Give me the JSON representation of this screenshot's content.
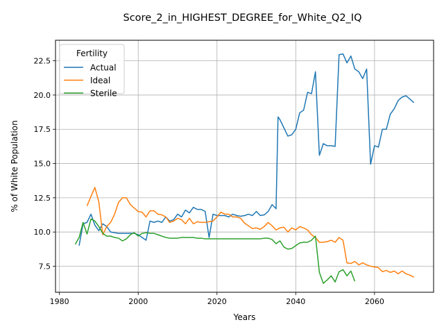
{
  "chart_data": {
    "type": "line",
    "title": "Score_2_in_HIGHEST_DEGREE_for_White_Q2_IQ",
    "xlabel": "Years",
    "ylabel": "% of White Population",
    "xlim": [
      1979,
      2075
    ],
    "ylim": [
      5.6,
      24.0
    ],
    "xticks": [
      1980,
      2000,
      2020,
      2040,
      2060
    ],
    "yticks": [
      7.5,
      10.0,
      12.5,
      15.0,
      17.5,
      20.0,
      22.5
    ],
    "grid": true,
    "legend": {
      "title": "Fertility",
      "placement": "top-left"
    },
    "series": [
      {
        "name": "Actual",
        "color": "#1f77b4",
        "points": [
          [
            1985,
            9.0
          ],
          [
            1986,
            10.6
          ],
          [
            1987,
            10.7
          ],
          [
            1988,
            11.3
          ],
          [
            1989,
            10.5
          ],
          [
            1990,
            10.1
          ],
          [
            1991,
            10.6
          ],
          [
            1992,
            10.4
          ],
          [
            1993,
            10.0
          ],
          [
            1994,
            9.95
          ],
          [
            1995,
            9.9
          ],
          [
            1996,
            9.9
          ],
          [
            1997,
            9.9
          ],
          [
            1998,
            9.9
          ],
          [
            1999,
            9.9
          ],
          [
            2000,
            9.8
          ],
          [
            2001,
            9.6
          ],
          [
            2002,
            9.4
          ],
          [
            2003,
            10.8
          ],
          [
            2004,
            10.7
          ],
          [
            2005,
            10.8
          ],
          [
            2006,
            10.7
          ],
          [
            2007,
            11.1
          ],
          [
            2008,
            10.8
          ],
          [
            2009,
            10.9
          ],
          [
            2010,
            11.3
          ],
          [
            2011,
            11.1
          ],
          [
            2012,
            11.6
          ],
          [
            2013,
            11.4
          ],
          [
            2014,
            11.8
          ],
          [
            2015,
            11.65
          ],
          [
            2016,
            11.65
          ],
          [
            2017,
            11.5
          ],
          [
            2018,
            9.6
          ],
          [
            2019,
            11.3
          ],
          [
            2020,
            11.2
          ],
          [
            2021,
            11.2
          ],
          [
            2022,
            11.2
          ],
          [
            2023,
            11.1
          ],
          [
            2024,
            11.3
          ],
          [
            2025,
            11.2
          ],
          [
            2026,
            11.15
          ],
          [
            2027,
            11.2
          ],
          [
            2028,
            11.3
          ],
          [
            2029,
            11.2
          ],
          [
            2030,
            11.5
          ],
          [
            2031,
            11.2
          ],
          [
            2032,
            11.25
          ],
          [
            2033,
            11.5
          ],
          [
            2034,
            12.0
          ],
          [
            2035,
            11.7
          ],
          [
            2035.5,
            18.4
          ],
          [
            2036,
            18.2
          ],
          [
            2037,
            17.6
          ],
          [
            2038,
            17.0
          ],
          [
            2039,
            17.1
          ],
          [
            2040,
            17.5
          ],
          [
            2041,
            18.7
          ],
          [
            2042,
            18.9
          ],
          [
            2043,
            20.2
          ],
          [
            2044,
            20.1
          ],
          [
            2045,
            21.7
          ],
          [
            2046,
            15.6
          ],
          [
            2047,
            16.45
          ],
          [
            2048,
            16.3
          ],
          [
            2049,
            16.3
          ],
          [
            2050,
            16.25
          ],
          [
            2051,
            22.95
          ],
          [
            2052,
            23.0
          ],
          [
            2053,
            22.35
          ],
          [
            2054,
            22.85
          ],
          [
            2055,
            21.9
          ],
          [
            2056,
            21.7
          ],
          [
            2057,
            21.2
          ],
          [
            2058,
            21.9
          ],
          [
            2059,
            14.95
          ],
          [
            2060,
            16.3
          ],
          [
            2061,
            16.2
          ],
          [
            2062,
            17.5
          ],
          [
            2063,
            17.5
          ],
          [
            2064,
            18.6
          ],
          [
            2065,
            19.0
          ],
          [
            2066,
            19.6
          ],
          [
            2067,
            19.85
          ],
          [
            2068,
            19.95
          ],
          [
            2069,
            19.7
          ],
          [
            2070,
            19.45
          ]
        ]
      },
      {
        "name": "Ideal",
        "color": "#ff7f0e",
        "points": [
          [
            1987,
            11.9
          ],
          [
            1988,
            12.6
          ],
          [
            1989,
            13.25
          ],
          [
            1990,
            12.2
          ],
          [
            1991,
            9.8
          ],
          [
            1992,
            10.4
          ],
          [
            1993,
            10.7
          ],
          [
            1994,
            11.3
          ],
          [
            1995,
            12.15
          ],
          [
            1996,
            12.5
          ],
          [
            1997,
            12.5
          ],
          [
            1998,
            12.0
          ],
          [
            1999,
            11.75
          ],
          [
            2000,
            11.5
          ],
          [
            2001,
            11.45
          ],
          [
            2002,
            11.1
          ],
          [
            2003,
            11.55
          ],
          [
            2004,
            11.55
          ],
          [
            2005,
            11.3
          ],
          [
            2006,
            11.25
          ],
          [
            2007,
            11.1
          ],
          [
            2008,
            10.7
          ],
          [
            2009,
            10.8
          ],
          [
            2010,
            11.0
          ],
          [
            2011,
            10.9
          ],
          [
            2012,
            10.6
          ],
          [
            2013,
            11.0
          ],
          [
            2014,
            10.6
          ],
          [
            2015,
            10.75
          ],
          [
            2016,
            10.7
          ],
          [
            2017,
            10.7
          ],
          [
            2018,
            10.75
          ],
          [
            2019,
            10.8
          ],
          [
            2020,
            11.1
          ],
          [
            2021,
            11.45
          ],
          [
            2022,
            11.3
          ],
          [
            2023,
            11.3
          ],
          [
            2024,
            11.1
          ],
          [
            2025,
            11.1
          ],
          [
            2026,
            11.0
          ],
          [
            2027,
            10.65
          ],
          [
            2028,
            10.45
          ],
          [
            2029,
            10.25
          ],
          [
            2030,
            10.3
          ],
          [
            2031,
            10.2
          ],
          [
            2032,
            10.4
          ],
          [
            2033,
            10.7
          ],
          [
            2034,
            10.45
          ],
          [
            2035,
            10.15
          ],
          [
            2036,
            10.3
          ],
          [
            2037,
            10.35
          ],
          [
            2038,
            10.0
          ],
          [
            2039,
            10.3
          ],
          [
            2040,
            10.15
          ],
          [
            2041,
            10.4
          ],
          [
            2042,
            10.3
          ],
          [
            2043,
            10.15
          ],
          [
            2044,
            9.8
          ],
          [
            2045,
            9.6
          ],
          [
            2046,
            9.25
          ],
          [
            2047,
            9.25
          ],
          [
            2048,
            9.3
          ],
          [
            2049,
            9.4
          ],
          [
            2050,
            9.25
          ],
          [
            2051,
            9.6
          ],
          [
            2052,
            9.4
          ],
          [
            2053,
            7.75
          ],
          [
            2054,
            7.7
          ],
          [
            2055,
            7.85
          ],
          [
            2056,
            7.6
          ],
          [
            2057,
            7.75
          ],
          [
            2058,
            7.6
          ],
          [
            2059,
            7.5
          ],
          [
            2060,
            7.45
          ],
          [
            2061,
            7.4
          ],
          [
            2062,
            7.1
          ],
          [
            2063,
            7.2
          ],
          [
            2064,
            7.05
          ],
          [
            2065,
            7.15
          ],
          [
            2066,
            6.95
          ],
          [
            2067,
            7.15
          ],
          [
            2068,
            6.95
          ],
          [
            2069,
            6.85
          ],
          [
            2070,
            6.7
          ]
        ]
      },
      {
        "name": "Sterile",
        "color": "#2ca02c",
        "points": [
          [
            1984,
            9.1
          ],
          [
            1985,
            9.6
          ],
          [
            1986,
            10.7
          ],
          [
            1987,
            9.85
          ],
          [
            1988,
            10.95
          ],
          [
            1989,
            10.8
          ],
          [
            1990,
            10.4
          ],
          [
            1991,
            9.9
          ],
          [
            1992,
            9.7
          ],
          [
            1993,
            9.7
          ],
          [
            1994,
            9.6
          ],
          [
            1995,
            9.55
          ],
          [
            1996,
            9.35
          ],
          [
            1997,
            9.5
          ],
          [
            1998,
            9.8
          ],
          [
            1999,
            9.95
          ],
          [
            2000,
            9.7
          ],
          [
            2001,
            9.9
          ],
          [
            2002,
            9.95
          ],
          [
            2003,
            9.9
          ],
          [
            2004,
            9.9
          ],
          [
            2005,
            9.8
          ],
          [
            2006,
            9.7
          ],
          [
            2007,
            9.6
          ],
          [
            2008,
            9.55
          ],
          [
            2009,
            9.55
          ],
          [
            2010,
            9.55
          ],
          [
            2011,
            9.6
          ],
          [
            2012,
            9.6
          ],
          [
            2013,
            9.6
          ],
          [
            2014,
            9.6
          ],
          [
            2015,
            9.55
          ],
          [
            2016,
            9.55
          ],
          [
            2017,
            9.5
          ],
          [
            2018,
            9.5
          ],
          [
            2019,
            9.5
          ],
          [
            2020,
            9.5
          ],
          [
            2021,
            9.5
          ],
          [
            2022,
            9.5
          ],
          [
            2023,
            9.5
          ],
          [
            2024,
            9.5
          ],
          [
            2025,
            9.5
          ],
          [
            2026,
            9.5
          ],
          [
            2027,
            9.5
          ],
          [
            2028,
            9.5
          ],
          [
            2029,
            9.5
          ],
          [
            2030,
            9.5
          ],
          [
            2031,
            9.5
          ],
          [
            2032,
            9.55
          ],
          [
            2033,
            9.55
          ],
          [
            2034,
            9.45
          ],
          [
            2035,
            9.15
          ],
          [
            2036,
            9.35
          ],
          [
            2037,
            8.9
          ],
          [
            2038,
            8.75
          ],
          [
            2039,
            8.8
          ],
          [
            2040,
            9.0
          ],
          [
            2041,
            9.2
          ],
          [
            2042,
            9.25
          ],
          [
            2043,
            9.25
          ],
          [
            2044,
            9.4
          ],
          [
            2045,
            9.7
          ],
          [
            2046,
            7.05
          ],
          [
            2047,
            6.25
          ],
          [
            2048,
            6.5
          ],
          [
            2049,
            6.8
          ],
          [
            2050,
            6.35
          ],
          [
            2051,
            7.1
          ],
          [
            2052,
            7.25
          ],
          [
            2053,
            6.8
          ],
          [
            2054,
            7.15
          ],
          [
            2055,
            6.4
          ]
        ]
      }
    ]
  }
}
